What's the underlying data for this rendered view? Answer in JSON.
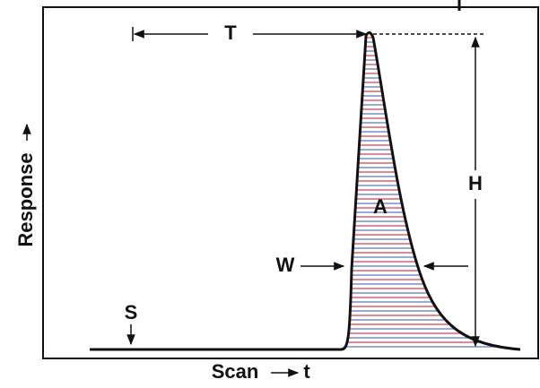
{
  "labels": {
    "y_axis": "Response",
    "x_axis": "Scan",
    "x_axis_symbol": "t",
    "retention_time": "T",
    "height": "H",
    "area": "A",
    "width": "W",
    "signal": "S"
  }
}
